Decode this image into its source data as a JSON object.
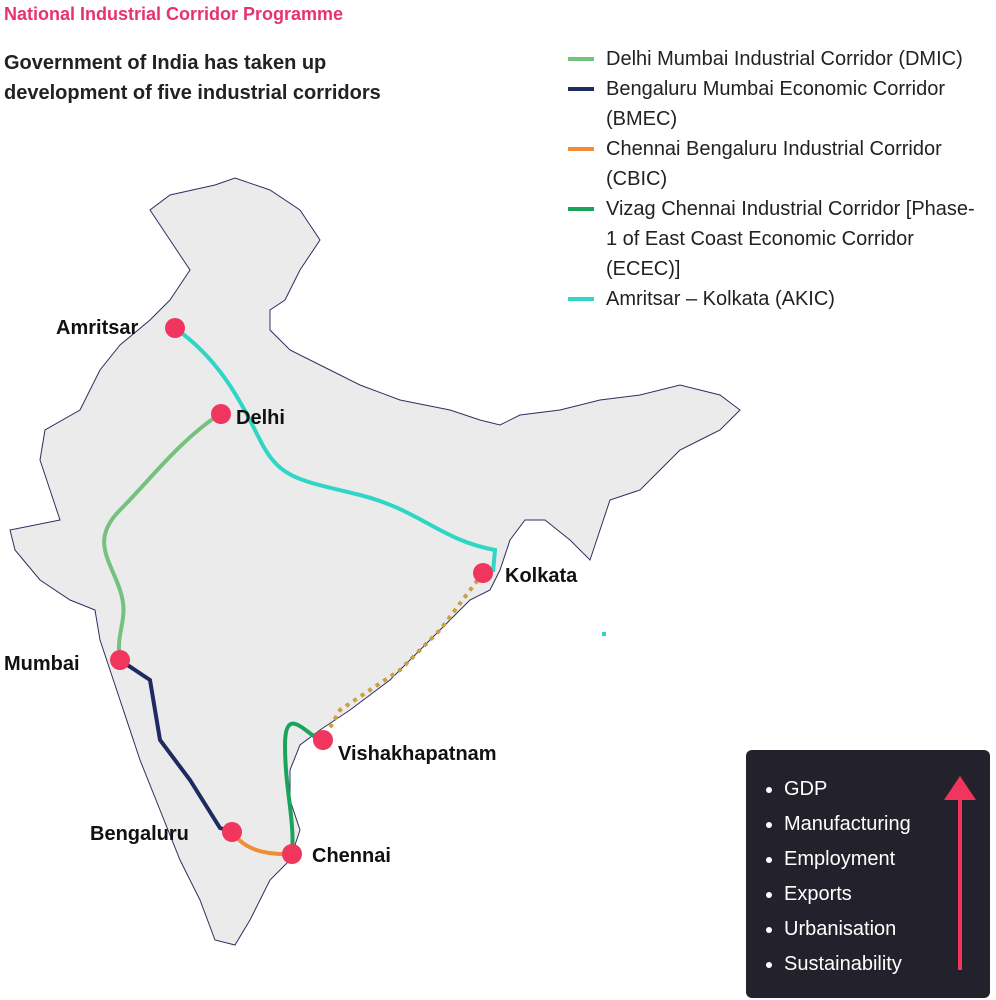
{
  "header": {
    "title": "National Industrial Corridor Programme",
    "subtitle": "Government of India has taken up development of five industrial corridors"
  },
  "legend": [
    {
      "label": "Delhi Mumbai Industrial Corridor (DMIC)",
      "color": "#74c27e"
    },
    {
      "label": "Bengaluru Mumbai Economic Corridor (BMEC)",
      "color": "#1f2b60"
    },
    {
      "label": "Chennai Bengaluru Industrial Corridor (CBIC)",
      "color": "#f28c35"
    },
    {
      "label": "Vizag Chennai Industrial Corridor [Phase-1 of East Coast Economic Corridor (ECEC)]",
      "color": "#1aa35a"
    },
    {
      "label": "Amritsar – Kolkata (AKIC)",
      "color": "#2fd6c6"
    }
  ],
  "cities": [
    "Amritsar",
    "Delhi",
    "Kolkata",
    "Mumbai",
    "Vishakhapatnam",
    "Bengaluru",
    "Chennai"
  ],
  "benefits": {
    "items": [
      "GDP",
      "Manufacturing",
      "Employment",
      "Exports",
      "Urbanisation",
      "Sustainability"
    ]
  }
}
